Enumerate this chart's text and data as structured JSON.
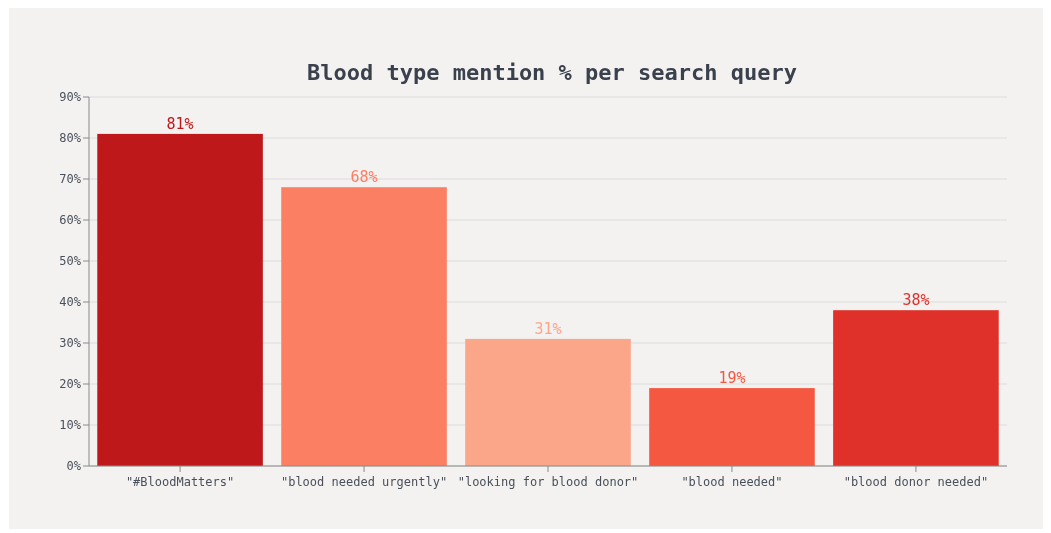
{
  "chart_data": {
    "type": "bar",
    "title": "Blood type mention % per search query",
    "categories": [
      "\"#BloodMatters\"",
      "\"blood needed urgently\"",
      "\"looking for blood donor\"",
      "\"blood needed\"",
      "\"blood donor needed\""
    ],
    "values": [
      81,
      68,
      31,
      19,
      38
    ],
    "colors": [
      "#be181b",
      "#fb7f62",
      "#fca689",
      "#f45840",
      "#df3029"
    ],
    "value_labels": [
      "81%",
      "68%",
      "31%",
      "19%",
      "38%"
    ],
    "ylim": [
      0,
      90
    ],
    "yticks": [
      {
        "value": 0,
        "label": "0%"
      },
      {
        "value": 10,
        "label": "10%"
      },
      {
        "value": 20,
        "label": "20%"
      },
      {
        "value": 30,
        "label": "30%"
      },
      {
        "value": 40,
        "label": "40%"
      },
      {
        "value": 50,
        "label": "50%"
      },
      {
        "value": 60,
        "label": "60%"
      },
      {
        "value": 70,
        "label": "70%"
      },
      {
        "value": 80,
        "label": "80%"
      },
      {
        "value": 90,
        "label": "90%"
      }
    ],
    "grid": "y"
  }
}
